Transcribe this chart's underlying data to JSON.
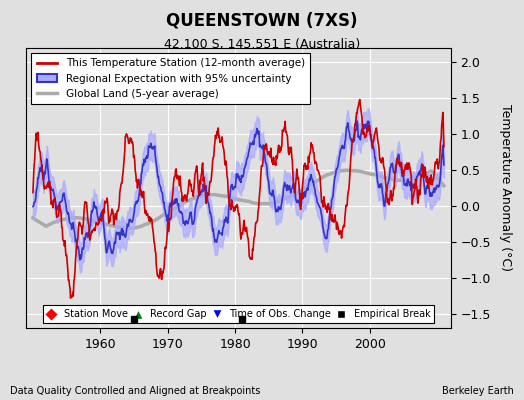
{
  "title": "QUEENSTOWN (7XS)",
  "subtitle": "42.100 S, 145.551 E (Australia)",
  "xlabel_bottom": "Data Quality Controlled and Aligned at Breakpoints",
  "xlabel_right": "Berkeley Earth",
  "ylabel": "Temperature Anomaly (°C)",
  "ylim": [
    -1.7,
    2.2
  ],
  "xlim": [
    1949,
    2012
  ],
  "xticks": [
    1960,
    1970,
    1980,
    1990,
    2000
  ],
  "yticks": [
    -1.5,
    -1.0,
    -0.5,
    0.0,
    0.5,
    1.0,
    1.5,
    2.0
  ],
  "bg_color": "#e0e0e0",
  "plot_bg_color": "#e0e0e0",
  "grid_color": "#ffffff",
  "station_color": "#cc0000",
  "regional_color": "#3333cc",
  "regional_fill_color": "#aaaaff",
  "global_color": "#aaaaaa",
  "empirical_break_years": [
    1965,
    1981
  ],
  "legend_loc": "upper left"
}
